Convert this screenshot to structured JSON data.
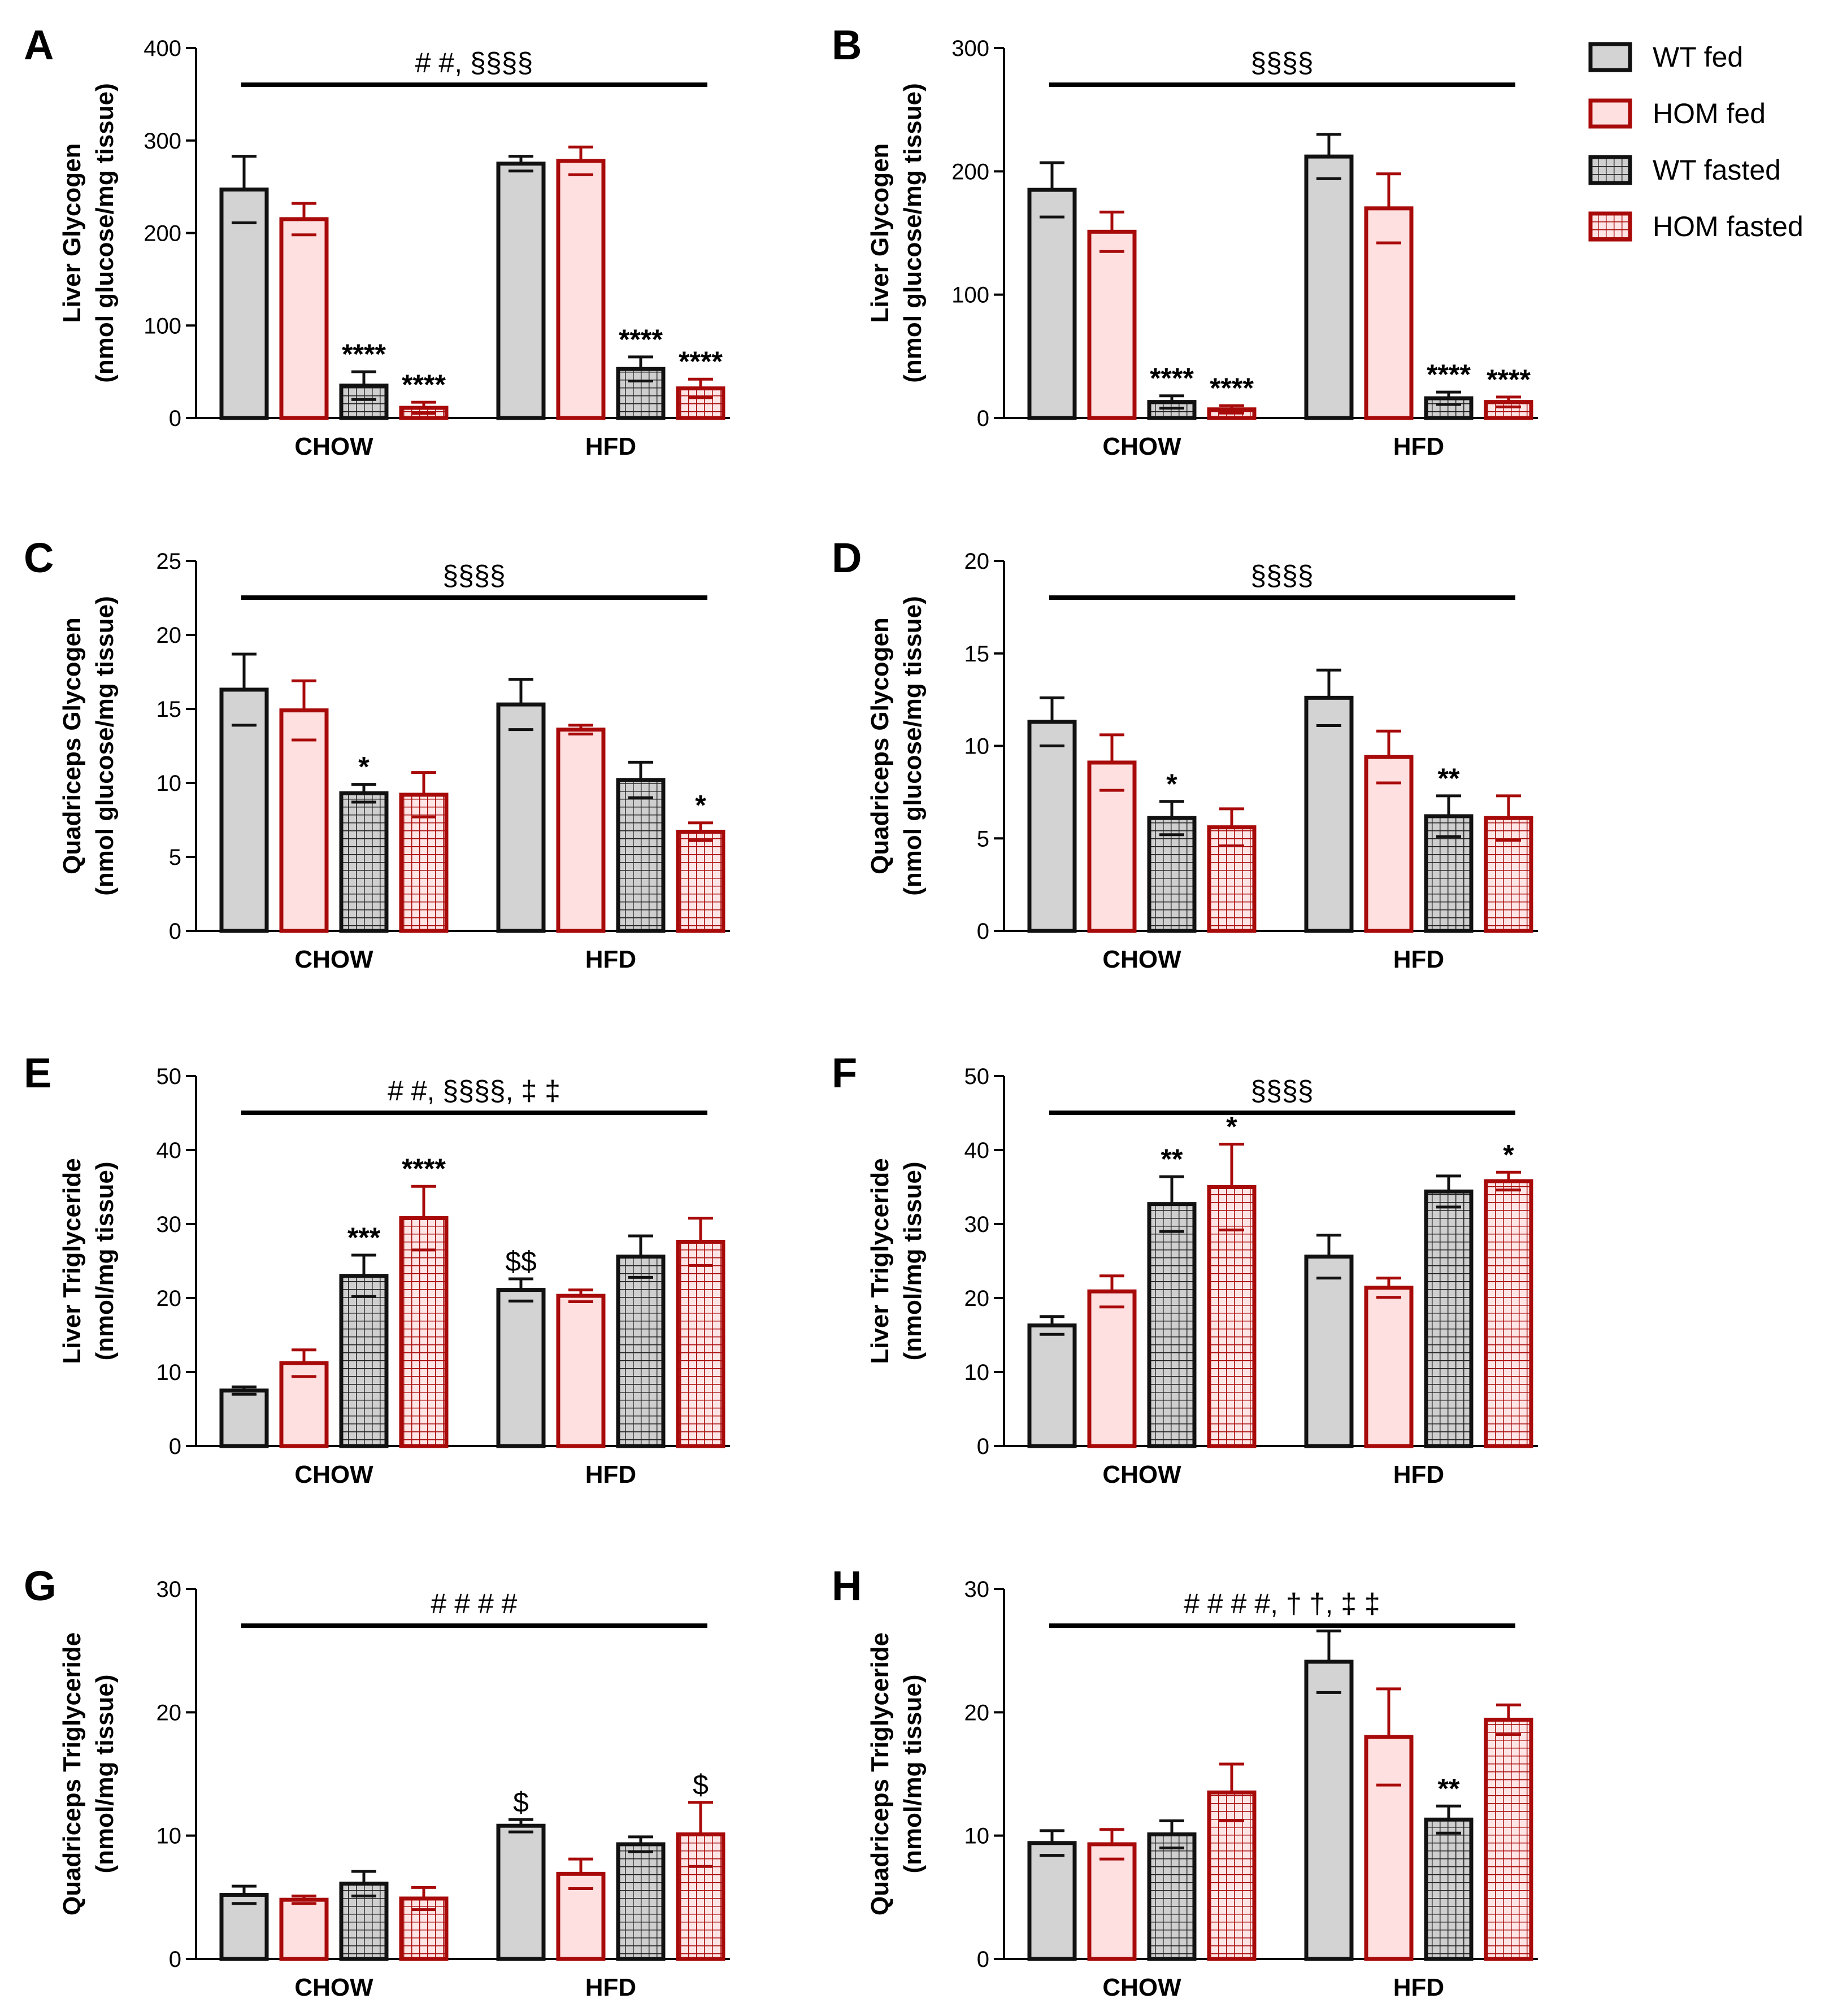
{
  "legend": [
    {
      "label": "WT fed",
      "fill": "#d3d3d3",
      "stroke": "#111111",
      "pattern": "solid"
    },
    {
      "label": "HOM fed",
      "fill": "#ffe0e0",
      "stroke": "#a80a0a",
      "pattern": "solid"
    },
    {
      "label": "WT fasted",
      "fill": "#cfcfcf",
      "stroke": "#111111",
      "pattern": "grid"
    },
    {
      "label": "HOM fasted",
      "fill": "#ffe0e0",
      "stroke": "#a80a0a",
      "pattern": "grid"
    }
  ],
  "categories": [
    "CHOW",
    "HFD"
  ],
  "chart_data": [
    {
      "panel": "A",
      "type": "bar",
      "ylabel": [
        "Liver Glycogen",
        "(nmol glucose/mg tissue)"
      ],
      "ylim": [
        0,
        400
      ],
      "yticks": [
        0,
        100,
        200,
        300,
        400
      ],
      "annotation": "# #, §§§§",
      "groups": [
        {
          "category": "CHOW",
          "values": [
            247,
            215,
            35,
            11
          ],
          "errors": [
            36,
            17,
            15,
            6
          ],
          "marks": [
            "",
            "",
            "****",
            "****"
          ]
        },
        {
          "category": "HFD",
          "values": [
            275,
            278,
            53,
            32
          ],
          "errors": [
            8,
            15,
            13,
            10
          ],
          "marks": [
            "",
            "",
            "****",
            "****"
          ]
        }
      ]
    },
    {
      "panel": "B",
      "type": "bar",
      "ylabel": [
        "Liver Glycogen",
        "(nmol glucose/mg tissue)"
      ],
      "ylim": [
        0,
        300
      ],
      "yticks": [
        0,
        100,
        200,
        300
      ],
      "annotation": "§§§§",
      "groups": [
        {
          "category": "CHOW",
          "values": [
            185,
            151,
            13,
            7
          ],
          "errors": [
            22,
            16,
            5,
            3
          ],
          "marks": [
            "",
            "",
            "****",
            "****"
          ]
        },
        {
          "category": "HFD",
          "values": [
            212,
            170,
            16,
            13
          ],
          "errors": [
            18,
            28,
            5,
            4
          ],
          "marks": [
            "",
            "",
            "****",
            "****"
          ]
        }
      ]
    },
    {
      "panel": "C",
      "type": "bar",
      "ylabel": [
        "Quadriceps Glycogen",
        "(nmol glucose/mg tissue)"
      ],
      "ylim": [
        0,
        25
      ],
      "yticks": [
        0,
        5,
        10,
        15,
        20,
        25
      ],
      "annotation": "§§§§",
      "groups": [
        {
          "category": "CHOW",
          "values": [
            16.3,
            14.9,
            9.3,
            9.2
          ],
          "errors": [
            2.4,
            2.0,
            0.6,
            1.5
          ],
          "marks": [
            "",
            "",
            "*",
            ""
          ]
        },
        {
          "category": "HFD",
          "values": [
            15.3,
            13.6,
            10.2,
            6.7
          ],
          "errors": [
            1.7,
            0.3,
            1.2,
            0.6
          ],
          "marks": [
            "",
            "",
            "",
            "*"
          ]
        }
      ]
    },
    {
      "panel": "D",
      "type": "bar",
      "ylabel": [
        "Quadriceps Glycogen",
        "(nmol glucose/mg tissue)"
      ],
      "ylim": [
        0,
        20
      ],
      "yticks": [
        0,
        5,
        10,
        15,
        20
      ],
      "annotation": "§§§§",
      "groups": [
        {
          "category": "CHOW",
          "values": [
            11.3,
            9.1,
            6.1,
            5.6
          ],
          "errors": [
            1.3,
            1.5,
            0.9,
            1.0
          ],
          "marks": [
            "",
            "",
            "*",
            ""
          ]
        },
        {
          "category": "HFD",
          "values": [
            12.6,
            9.4,
            6.2,
            6.1
          ],
          "errors": [
            1.5,
            1.4,
            1.1,
            1.2
          ],
          "marks": [
            "",
            "",
            "**",
            ""
          ]
        }
      ]
    },
    {
      "panel": "E",
      "type": "bar",
      "ylabel": [
        "Liver Triglyceride",
        "(nmol/mg tissue)"
      ],
      "ylim": [
        0,
        50
      ],
      "yticks": [
        0,
        10,
        20,
        30,
        40,
        50
      ],
      "annotation": "# #, §§§§, ‡ ‡",
      "groups": [
        {
          "category": "CHOW",
          "values": [
            7.5,
            11.2,
            23.0,
            30.8
          ],
          "errors": [
            0.5,
            1.8,
            2.8,
            4.3
          ],
          "marks": [
            "",
            "",
            "***",
            "****"
          ]
        },
        {
          "category": "HFD",
          "values": [
            21.1,
            20.3,
            25.6,
            27.6
          ],
          "errors": [
            1.5,
            0.8,
            2.8,
            3.2
          ],
          "marks": [
            "$$",
            "",
            "",
            ""
          ]
        }
      ]
    },
    {
      "panel": "F",
      "type": "bar",
      "ylabel": [
        "Liver Triglyceride",
        "(nmol/mg tissue)"
      ],
      "ylim": [
        0,
        50
      ],
      "yticks": [
        0,
        10,
        20,
        30,
        40,
        50
      ],
      "annotation": "§§§§",
      "groups": [
        {
          "category": "CHOW",
          "values": [
            16.3,
            20.9,
            32.7,
            35.0
          ],
          "errors": [
            1.2,
            2.1,
            3.7,
            5.8
          ],
          "marks": [
            "",
            "",
            "**",
            "*"
          ]
        },
        {
          "category": "HFD",
          "values": [
            25.6,
            21.4,
            34.4,
            35.8
          ],
          "errors": [
            2.9,
            1.3,
            2.1,
            1.2
          ],
          "marks": [
            "",
            "",
            "",
            "*"
          ]
        }
      ]
    },
    {
      "panel": "G",
      "type": "bar",
      "ylabel": [
        "Quadriceps Triglyceride",
        "(nmol/mg tissue)"
      ],
      "ylim": [
        0,
        30
      ],
      "yticks": [
        0,
        10,
        20,
        30
      ],
      "annotation": "# # # #",
      "groups": [
        {
          "category": "CHOW",
          "values": [
            5.2,
            4.8,
            6.1,
            4.9
          ],
          "errors": [
            0.7,
            0.3,
            1.0,
            0.9
          ],
          "marks": [
            "",
            "",
            "",
            ""
          ]
        },
        {
          "category": "HFD",
          "values": [
            10.8,
            6.9,
            9.3,
            10.1
          ],
          "errors": [
            0.5,
            1.2,
            0.6,
            2.6
          ],
          "marks": [
            "$",
            "",
            "",
            "$"
          ]
        }
      ]
    },
    {
      "panel": "H",
      "type": "bar",
      "ylabel": [
        "Quadriceps Triglyceride",
        "(nmol/mg tissue)"
      ],
      "ylim": [
        0,
        30
      ],
      "yticks": [
        0,
        10,
        20,
        30
      ],
      "annotation": "# # # #, † †, ‡ ‡",
      "groups": [
        {
          "category": "CHOW",
          "values": [
            9.4,
            9.3,
            10.1,
            13.5
          ],
          "errors": [
            1.0,
            1.2,
            1.1,
            2.3
          ],
          "marks": [
            "",
            "",
            "",
            ""
          ]
        },
        {
          "category": "HFD",
          "values": [
            24.1,
            18.0,
            11.3,
            19.4
          ],
          "errors": [
            2.5,
            3.9,
            1.1,
            1.2
          ],
          "marks": [
            "",
            "",
            "**",
            ""
          ]
        }
      ]
    }
  ]
}
